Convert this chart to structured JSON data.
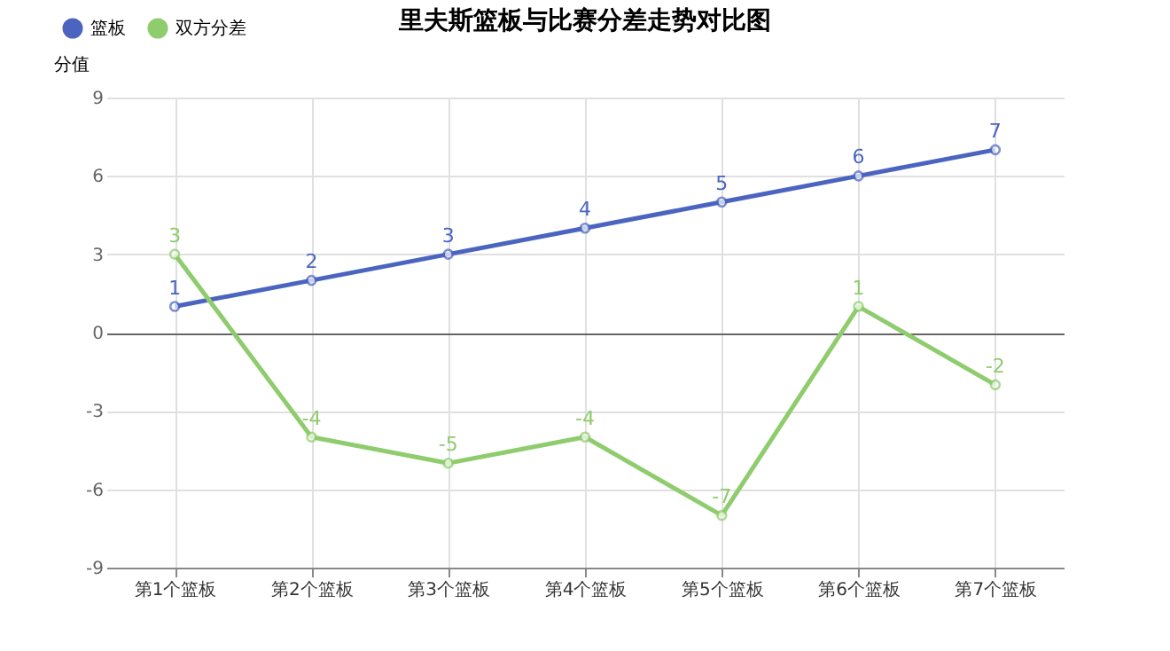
{
  "chart_data": {
    "type": "line",
    "title": "里夫斯篮板与比赛分差走势对比图",
    "ylabel": "分值",
    "categories": [
      "第1个篮板",
      "第2个篮板",
      "第3个篮板",
      "第4个篮板",
      "第5个篮板",
      "第6个篮板",
      "第7个篮板"
    ],
    "series": [
      {
        "name": "篮板",
        "color": "#4a64c0",
        "values": [
          1,
          2,
          3,
          4,
          5,
          6,
          7
        ]
      },
      {
        "name": "双方分差",
        "color": "#8fcc6e",
        "values": [
          3,
          -4,
          -5,
          -4,
          -7,
          1,
          -2
        ]
      }
    ],
    "ylim": [
      -9,
      9
    ],
    "yticks": [
      -9,
      -6,
      -3,
      0,
      3,
      6,
      9
    ],
    "grid": true,
    "legend": "top left",
    "marker": "circle",
    "line_style": "solid",
    "data_labels": true
  }
}
